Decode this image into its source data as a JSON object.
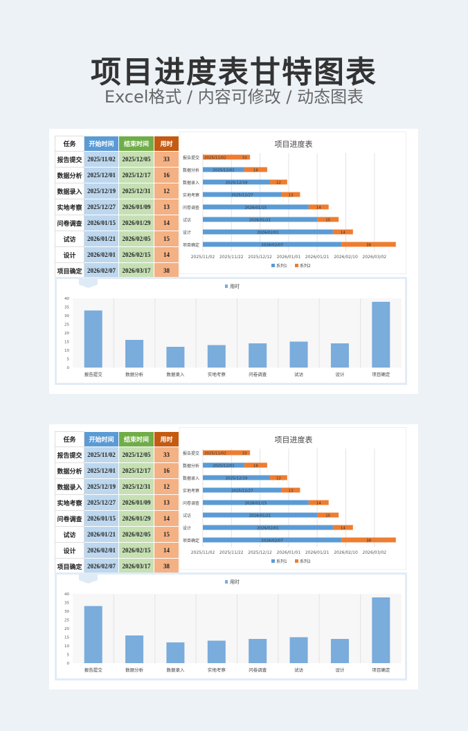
{
  "header": {
    "title": "项目进度表甘特图表",
    "subtitle": "Excel格式 / 内容可修改 / 动态图表"
  },
  "table": {
    "headers": [
      "任务",
      "开始时间",
      "结束时间",
      "用时"
    ],
    "rows": [
      [
        "报告提交",
        "2025/11/02",
        "2025/12/05",
        "33"
      ],
      [
        "数据分析",
        "2025/12/01",
        "2025/12/17",
        "16"
      ],
      [
        "数据录入",
        "2025/12/19",
        "2025/12/31",
        "12"
      ],
      [
        "实地考察",
        "2025/12/27",
        "2026/01/09",
        "13"
      ],
      [
        "问卷调查",
        "2026/01/15",
        "2026/01/29",
        "14"
      ],
      [
        "试访",
        "2026/01/21",
        "2026/02/05",
        "15"
      ],
      [
        "设计",
        "2026/02/01",
        "2026/02/15",
        "14"
      ],
      [
        "项目确定",
        "2026/02/07",
        "2026/03/17",
        "38"
      ]
    ]
  },
  "colors": {
    "blue": "#5b9bd5",
    "orange": "#ed7d31",
    "bar": "#7aacdc"
  },
  "chart_data": [
    {
      "type": "bar",
      "subtype": "stacked-horizontal-gantt",
      "title": "项目进度表",
      "categories": [
        "报告提交",
        "数据分析",
        "数据录入",
        "实地考察",
        "问卷调查",
        "试访",
        "设计",
        "项目确定"
      ],
      "series": [
        {
          "name": "系列1",
          "values": [
            "2025/11/02",
            "2025/12/01",
            "2025/12/19",
            "2025/12/27",
            "2026/01/15",
            "2026/01/21",
            "2026/02/01",
            "2026/02/07"
          ]
        },
        {
          "name": "系列2",
          "values": [
            33,
            16,
            12,
            13,
            14,
            15,
            14,
            38
          ]
        }
      ],
      "xticks": [
        "2025/11/02",
        "2025/11/22",
        "2025/12/12",
        "2026/01/01",
        "2026/01/21",
        "2026/02/10",
        "2026/03/02"
      ],
      "legend": "bottom"
    },
    {
      "type": "bar",
      "title": "",
      "legend_label": "用时",
      "categories": [
        "报告提交",
        "数据分析",
        "数据录入",
        "实地考察",
        "问卷调查",
        "试访",
        "设计",
        "项目确定"
      ],
      "values": [
        33,
        16,
        12,
        13,
        14,
        15,
        14,
        38
      ],
      "ylim": [
        0,
        40
      ],
      "yticks": [
        "0",
        "5",
        "10",
        "15",
        "20",
        "25",
        "30",
        "35",
        "40"
      ],
      "legend": "top"
    }
  ]
}
